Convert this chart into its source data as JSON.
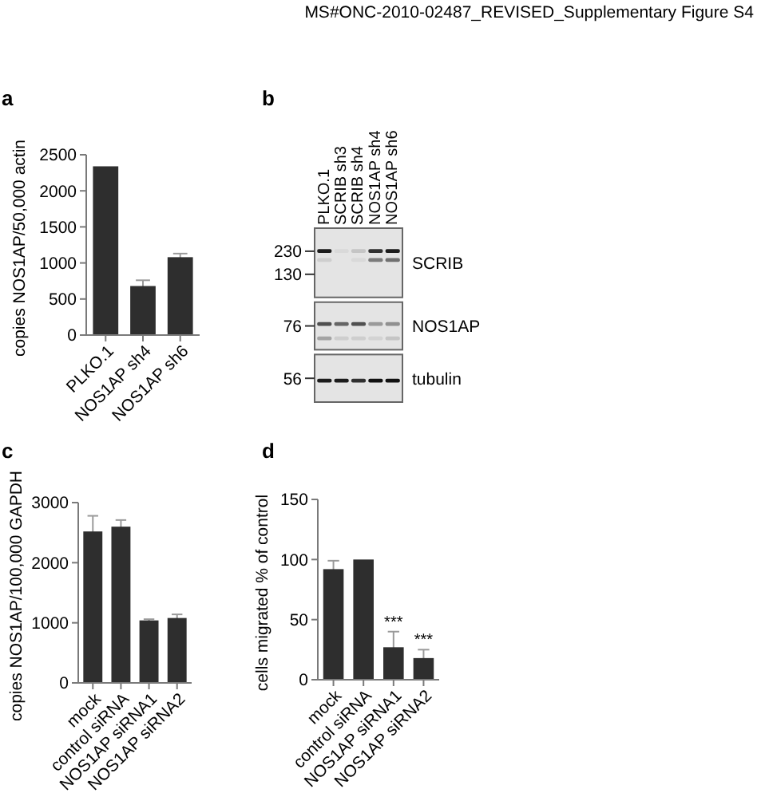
{
  "chart_data": [
    {
      "type": "bar",
      "title": "a",
      "categories": [
        "PLKO.1",
        "NOS1AP sh4",
        "NOS1AP sh6"
      ],
      "values": [
        2340,
        680,
        1080
      ],
      "errors": [
        null,
        80,
        50
      ],
      "color": "#2e2e2e",
      "ylabel": "copies NOS1AP/50,000 actin",
      "ylim": [
        0,
        2500
      ],
      "yticks": [
        0,
        500,
        1000,
        1500,
        2000,
        2500
      ],
      "annotations": [
        "MS#ONC-2010-02487_REVISED_Supplementary Figure S4"
      ]
    },
    {
      "type": "other",
      "title": "b",
      "categories": [
        "PLKO.1",
        "SCRIB sh3",
        "SCRIB sh4",
        "NOS1AP sh4",
        "NOS1AP sh6"
      ],
      "y2_categories": [
        "SCRIB",
        "NOS1AP",
        "tubulin"
      ],
      "annotations": [
        "230",
        "130",
        "76",
        "56"
      ]
    },
    {
      "type": "bar",
      "title": "c",
      "categories": [
        "mock",
        "control siRNA",
        "NOS1AP siRNA1",
        "NOS1AP siRNA2"
      ],
      "values": [
        2520,
        2600,
        1040,
        1080
      ],
      "errors": [
        260,
        110,
        20,
        60
      ],
      "color": "#2e2e2e",
      "ylabel": "copies NOS1AP/100,000 GAPDH",
      "ylim": [
        0,
        3000
      ],
      "yticks": [
        0,
        1000,
        2000,
        3000
      ]
    },
    {
      "type": "bar",
      "title": "d",
      "categories": [
        "mock",
        "control siRNA",
        "NOS1AP siRNA1",
        "NOS1AP siRNA2"
      ],
      "values": [
        92,
        100,
        27,
        18
      ],
      "errors": [
        7,
        null,
        13,
        7
      ],
      "color": "#2e2e2e",
      "ylabel": "cells migrated % of control",
      "ylim": [
        0,
        150
      ],
      "yticks": [
        0,
        50,
        100,
        150
      ],
      "annotations": [
        {
          "text": "***",
          "x": "NOS1AP siRNA1",
          "y": 40
        },
        {
          "text": "***",
          "x": "NOS1AP siRNA2",
          "y": 25
        }
      ]
    }
  ]
}
